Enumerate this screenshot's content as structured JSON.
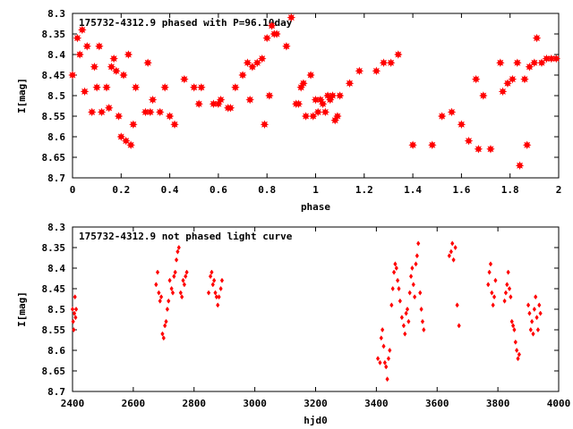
{
  "chart_data": [
    {
      "type": "scatter",
      "title": "175732-4312.9 phased with P=96.10day",
      "xlabel": "phase",
      "ylabel": "I[mag]",
      "xlim": [
        0,
        2
      ],
      "ylim": [
        8.3,
        8.7
      ],
      "y_inverted": true,
      "grid": false,
      "xticks": [
        "0",
        "0.2",
        "0.4",
        "0.6",
        "0.8",
        "1",
        "1.2",
        "1.4",
        "1.6",
        "1.8",
        "2"
      ],
      "yticks": [
        "8.3",
        "8.35",
        "8.4",
        "8.45",
        "8.5",
        "8.55",
        "8.6",
        "8.65",
        "8.7"
      ],
      "marker": "star",
      "color": "#ff0000",
      "series": [
        {
          "x": [
            0.0,
            0.02,
            0.03,
            0.04,
            0.05,
            0.06,
            0.08,
            0.09,
            0.1,
            0.11,
            0.12,
            0.14,
            0.15,
            0.16,
            0.17,
            0.18,
            0.19,
            0.2,
            0.21,
            0.22,
            0.23,
            0.24,
            0.25,
            0.26,
            0.3,
            0.31,
            0.32,
            0.33,
            0.36,
            0.38,
            0.4,
            0.42,
            0.46,
            0.5,
            0.52,
            0.53,
            0.58,
            0.6,
            0.61,
            0.64,
            0.65,
            0.67,
            0.7,
            0.72,
            0.73,
            0.74,
            0.76,
            0.78,
            0.79,
            0.8,
            0.81,
            0.82,
            0.83,
            0.84,
            0.88,
            0.9,
            0.92,
            0.93,
            0.94,
            0.95,
            0.96,
            0.98,
            0.99,
            1.0,
            1.01,
            1.02,
            1.03,
            1.04,
            1.05,
            1.06,
            1.07,
            1.08,
            1.09,
            1.1,
            1.14,
            1.18,
            1.25,
            1.28,
            1.31,
            1.34,
            1.4,
            1.48,
            1.52,
            1.56,
            1.6,
            1.63,
            1.66,
            1.67,
            1.69,
            1.72,
            1.76,
            1.77,
            1.79,
            1.81,
            1.83,
            1.84,
            1.86,
            1.87,
            1.88,
            1.9,
            1.91,
            1.93,
            1.95,
            1.97,
            1.99
          ],
          "y": [
            8.45,
            8.36,
            8.4,
            8.34,
            8.49,
            8.38,
            8.54,
            8.43,
            8.48,
            8.38,
            8.54,
            8.48,
            8.53,
            8.43,
            8.41,
            8.44,
            8.55,
            8.6,
            8.45,
            8.61,
            8.4,
            8.62,
            8.57,
            8.48,
            8.54,
            8.42,
            8.54,
            8.51,
            8.54,
            8.48,
            8.55,
            8.57,
            8.46,
            8.48,
            8.52,
            8.48,
            8.52,
            8.52,
            8.51,
            8.53,
            8.53,
            8.48,
            8.45,
            8.42,
            8.51,
            8.43,
            8.42,
            8.41,
            8.57,
            8.36,
            8.5,
            8.33,
            8.35,
            8.35,
            8.38,
            8.31,
            8.52,
            8.52,
            8.48,
            8.47,
            8.55,
            8.45,
            8.55,
            8.51,
            8.54,
            8.51,
            8.52,
            8.54,
            8.5,
            8.51,
            8.5,
            8.56,
            8.55,
            8.5,
            8.47,
            8.44,
            8.44,
            8.42,
            8.42,
            8.4,
            8.62,
            8.62,
            8.55,
            8.54,
            8.57,
            8.61,
            8.46,
            8.63,
            8.5,
            8.63,
            8.42,
            8.49,
            8.47,
            8.46,
            8.42,
            8.67,
            8.46,
            8.62,
            8.43,
            8.42,
            8.36,
            8.42,
            8.41,
            8.41,
            8.41
          ]
        }
      ]
    },
    {
      "type": "scatter",
      "title": "175732-4312.9 not phased light curve",
      "xlabel": "hjd0",
      "ylabel": "I[mag]",
      "xlim": [
        2400,
        4000
      ],
      "ylim": [
        8.3,
        8.7
      ],
      "y_inverted": true,
      "grid": false,
      "xticks": [
        "2400",
        "2600",
        "2800",
        "3000",
        "3200",
        "3400",
        "3600",
        "3800",
        "4000"
      ],
      "yticks": [
        "8.3",
        "8.35",
        "8.4",
        "8.45",
        "8.5",
        "8.55",
        "8.6",
        "8.65",
        "8.7"
      ],
      "marker": "diamond",
      "color": "#ff0000",
      "series": [
        {
          "x": [
            2400,
            2402,
            2404,
            2406,
            2408,
            2410,
            2412,
            2675,
            2680,
            2684,
            2688,
            2692,
            2696,
            2700,
            2704,
            2708,
            2712,
            2716,
            2720,
            2726,
            2730,
            2734,
            2738,
            2742,
            2746,
            2750,
            2756,
            2760,
            2764,
            2768,
            2772,
            2776,
            2848,
            2854,
            2858,
            2862,
            2866,
            2870,
            2874,
            2878,
            2882,
            2888,
            2892,
            3405,
            3412,
            3416,
            3420,
            3424,
            3428,
            3432,
            3436,
            3440,
            3444,
            3450,
            3454,
            3458,
            3462,
            3466,
            3470,
            3474,
            3478,
            3484,
            3490,
            3494,
            3498,
            3502,
            3506,
            3510,
            3514,
            3518,
            3522,
            3526,
            3530,
            3534,
            3538,
            3544,
            3548,
            3552,
            3556,
            3640,
            3646,
            3650,
            3654,
            3660,
            3666,
            3672,
            3768,
            3772,
            3776,
            3780,
            3784,
            3788,
            3792,
            3822,
            3826,
            3830,
            3834,
            3838,
            3842,
            3846,
            3850,
            3854,
            3858,
            3862,
            3866,
            3870,
            3900,
            3904,
            3908,
            3912,
            3916,
            3920,
            3924,
            3928,
            3932,
            3936,
            3940
          ],
          "y": [
            8.5,
            8.53,
            8.55,
            8.51,
            8.47,
            8.52,
            8.5,
            8.44,
            8.41,
            8.46,
            8.48,
            8.47,
            8.56,
            8.57,
            8.54,
            8.53,
            8.5,
            8.48,
            8.43,
            8.45,
            8.46,
            8.42,
            8.41,
            8.38,
            8.36,
            8.35,
            8.46,
            8.47,
            8.43,
            8.44,
            8.42,
            8.41,
            8.46,
            8.42,
            8.41,
            8.44,
            8.43,
            8.46,
            8.47,
            8.49,
            8.47,
            8.45,
            8.43,
            8.62,
            8.63,
            8.57,
            8.55,
            8.59,
            8.63,
            8.64,
            8.67,
            8.62,
            8.6,
            8.49,
            8.45,
            8.41,
            8.39,
            8.4,
            8.43,
            8.45,
            8.48,
            8.52,
            8.54,
            8.56,
            8.51,
            8.5,
            8.53,
            8.46,
            8.42,
            8.4,
            8.44,
            8.47,
            8.39,
            8.37,
            8.34,
            8.46,
            8.5,
            8.53,
            8.55,
            8.37,
            8.36,
            8.34,
            8.38,
            8.35,
            8.49,
            8.54,
            8.44,
            8.41,
            8.39,
            8.46,
            8.49,
            8.47,
            8.43,
            8.48,
            8.46,
            8.44,
            8.41,
            8.45,
            8.47,
            8.53,
            8.54,
            8.55,
            8.58,
            8.6,
            8.62,
            8.61,
            8.49,
            8.51,
            8.55,
            8.53,
            8.56,
            8.5,
            8.47,
            8.52,
            8.55,
            8.49,
            8.51
          ]
        }
      ]
    }
  ]
}
